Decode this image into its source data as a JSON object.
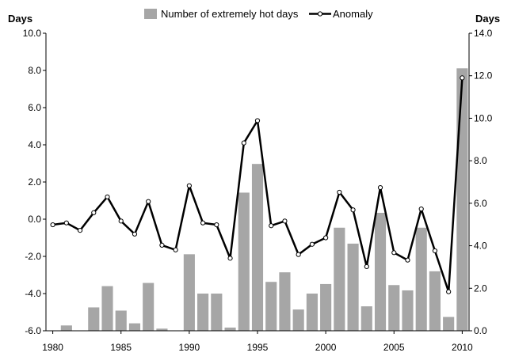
{
  "chart_data": {
    "type": "bar+line",
    "title": "",
    "legend": {
      "placement": "top-center",
      "bar_label": "Number of extremely hot days",
      "line_label": "Anomaly"
    },
    "colors": {
      "bar": "#a6a6a6",
      "line": "#000000",
      "marker_fill": "#ffffff"
    },
    "grid": false,
    "y_left": {
      "label": "Days",
      "range": [
        -6,
        10
      ],
      "ticks": [
        -6,
        -4,
        -2,
        0,
        2,
        4,
        6,
        8,
        10
      ],
      "tick_labels": [
        "-6.0",
        "-4.0",
        "-2.0",
        "0.0",
        "2.0",
        "4.0",
        "6.0",
        "8.0",
        "10.0"
      ]
    },
    "y_right": {
      "label": "Days",
      "range": [
        0,
        14
      ],
      "ticks": [
        0,
        2,
        4,
        6,
        8,
        10,
        12,
        14
      ],
      "tick_labels": [
        "0.0",
        "2.0",
        "4.0",
        "6.0",
        "8.0",
        "10.0",
        "12.0",
        "14.0"
      ]
    },
    "x": {
      "range": [
        1980,
        2010
      ],
      "ticks": [
        1980,
        1985,
        1990,
        1995,
        2000,
        2005,
        2010
      ],
      "tick_labels": [
        "1980",
        "1985",
        "1990",
        "1995",
        "2000",
        "2005",
        "2010"
      ]
    },
    "bars": {
      "name": "Number of extremely hot days",
      "axis": "right",
      "x": [
        1981,
        1983,
        1984,
        1985,
        1986,
        1987,
        1988,
        1990,
        1991,
        1992,
        1993,
        1994,
        1995,
        1996,
        1997,
        1998,
        1999,
        2000,
        2001,
        2002,
        2003,
        2004,
        2005,
        2006,
        2007,
        2008,
        2009,
        2010
      ],
      "values": [
        0.25,
        1.1,
        2.1,
        0.95,
        0.35,
        2.25,
        0.1,
        3.6,
        1.75,
        1.75,
        0.15,
        6.5,
        7.85,
        2.3,
        2.75,
        1.0,
        1.75,
        2.2,
        4.85,
        4.1,
        1.15,
        5.55,
        2.15,
        1.9,
        4.85,
        2.8,
        0.65,
        12.35
      ]
    },
    "line": {
      "name": "Anomaly",
      "axis": "left",
      "x": [
        1980,
        1981,
        1982,
        1983,
        1984,
        1985,
        1986,
        1987,
        1988,
        1989,
        1990,
        1991,
        1992,
        1993,
        1994,
        1995,
        1996,
        1997,
        1998,
        1999,
        2000,
        2001,
        2002,
        2003,
        2004,
        2005,
        2006,
        2007,
        2008,
        2009,
        2010
      ],
      "values": [
        -0.3,
        -0.2,
        -0.6,
        0.35,
        1.2,
        -0.1,
        -0.8,
        0.95,
        -1.4,
        -1.65,
        1.8,
        -0.2,
        -0.3,
        -2.1,
        4.1,
        5.3,
        -0.35,
        -0.1,
        -1.9,
        -1.35,
        -1.0,
        1.45,
        0.5,
        -2.55,
        1.7,
        -1.8,
        -2.2,
        0.55,
        -1.7,
        -3.9,
        7.6
      ]
    }
  }
}
